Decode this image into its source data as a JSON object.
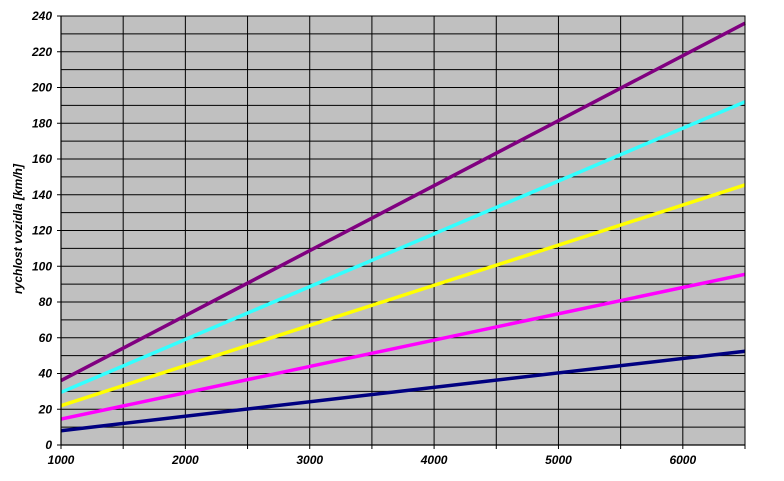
{
  "chart_data": {
    "type": "line",
    "title": "",
    "xlabel": "",
    "ylabel": "rychlost vozidla [km/h]",
    "xlim": [
      1000,
      6500
    ],
    "ylim": [
      0,
      240
    ],
    "x_ticks": [
      1000,
      2000,
      3000,
      4000,
      5000,
      6000
    ],
    "x_ticks_labels": [
      "1000",
      "2000",
      "3000",
      "4000",
      "5000",
      "6000"
    ],
    "x_minor_step": 500,
    "y_ticks": [
      0,
      20,
      40,
      60,
      80,
      100,
      120,
      140,
      160,
      180,
      200,
      220,
      240
    ],
    "y_ticks_labels": [
      "0",
      "20",
      "40",
      "60",
      "80",
      "100",
      "120",
      "140",
      "160",
      "180",
      "200",
      "220",
      "240"
    ],
    "y_minor_step": 10,
    "grid": true,
    "legend": "none",
    "plot_background": "#c0c0c0",
    "series": [
      {
        "color": "#000080",
        "x": [
          1000,
          6500
        ],
        "y": [
          8,
          52.5
        ]
      },
      {
        "color": "#ff00ff",
        "x": [
          1000,
          6500
        ],
        "y": [
          14.5,
          95.5
        ]
      },
      {
        "color": "#ffff00",
        "x": [
          1000,
          6500
        ],
        "y": [
          22,
          145.5
        ]
      },
      {
        "color": "#33ffff",
        "x": [
          1000,
          6500
        ],
        "y": [
          29.5,
          192
        ]
      },
      {
        "color": "#800080",
        "x": [
          1000,
          6500
        ],
        "y": [
          36,
          236
        ]
      }
    ]
  }
}
